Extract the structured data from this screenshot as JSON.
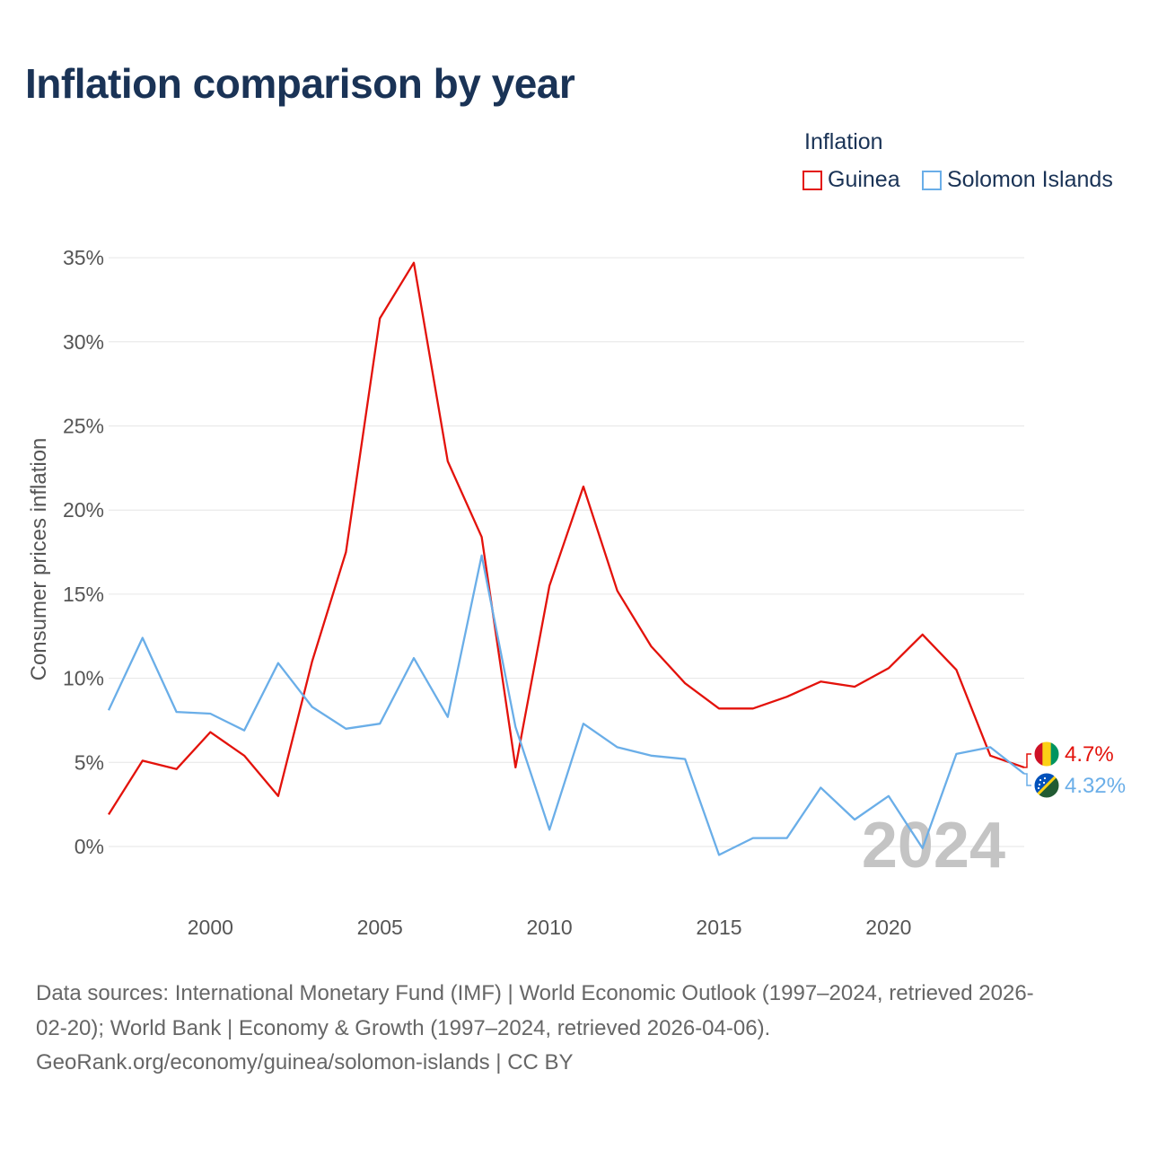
{
  "chart_data": {
    "type": "line",
    "title": "Inflation comparison by year",
    "legend_title": "Inflation",
    "legend_position": "top-right",
    "ylabel": "Consumer prices inflation",
    "xlabel": "",
    "xlim": [
      1997,
      2024
    ],
    "ylim": [
      -3.5,
      35
    ],
    "x_ticks": [
      2000,
      2005,
      2010,
      2015,
      2020
    ],
    "y_ticks": [
      0,
      5,
      10,
      15,
      20,
      25,
      30,
      35
    ],
    "y_tick_labels": [
      "0%",
      "5%",
      "10%",
      "15%",
      "20%",
      "25%",
      "30%",
      "35%"
    ],
    "year_label": "2024",
    "grid": true,
    "x": [
      1997,
      1998,
      1999,
      2000,
      2001,
      2002,
      2003,
      2004,
      2005,
      2006,
      2007,
      2008,
      2009,
      2010,
      2011,
      2012,
      2013,
      2014,
      2015,
      2016,
      2017,
      2018,
      2019,
      2020,
      2021,
      2022,
      2023,
      2024
    ],
    "series": [
      {
        "name": "Guinea",
        "color": "#e3120b",
        "end_label": "4.7%",
        "values": [
          1.9,
          5.1,
          4.6,
          6.8,
          5.4,
          3.0,
          11.0,
          17.5,
          31.4,
          34.7,
          22.9,
          18.4,
          4.7,
          15.5,
          21.4,
          15.2,
          11.9,
          9.7,
          8.2,
          8.2,
          8.9,
          9.8,
          9.5,
          10.6,
          12.6,
          10.5,
          5.4,
          4.7
        ]
      },
      {
        "name": "Solomon Islands",
        "color": "#6aaee8",
        "end_label": "4.32%",
        "values": [
          8.1,
          12.4,
          8.0,
          7.9,
          6.9,
          10.9,
          8.3,
          7.0,
          7.3,
          11.2,
          7.7,
          17.3,
          7.1,
          1.0,
          7.3,
          5.9,
          5.4,
          5.2,
          -0.5,
          0.5,
          0.5,
          3.5,
          1.6,
          3.0,
          -0.1,
          5.5,
          5.9,
          4.32
        ]
      }
    ]
  },
  "footer": {
    "line1": "Data sources: International Monetary Fund (IMF) | World Economic Outlook (1997–2024, retrieved 2026-",
    "line2": "02-20); World Bank | Economy & Growth (1997–2024, retrieved 2026-04-06).",
    "line3": "GeoRank.org/economy/guinea/solomon-islands | CC BY"
  },
  "flags": {
    "guinea": [
      "#ce1126",
      "#fcd116",
      "#009460"
    ],
    "solomon_islands": [
      "#0051ba",
      "#fcd116",
      "#215b33"
    ]
  }
}
